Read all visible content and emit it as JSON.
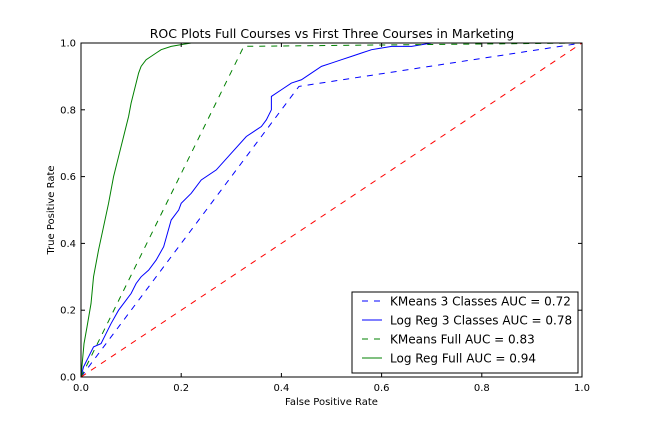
{
  "chart_data": {
    "type": "line",
    "title": "ROC Plots Full Courses vs First Three Courses in Marketing",
    "xlabel": "False Positive Rate",
    "ylabel": "True Positive Rate",
    "xlim": [
      0.0,
      1.0
    ],
    "ylim": [
      0.0,
      1.0
    ],
    "xticks": [
      "0.0",
      "0.2",
      "0.4",
      "0.6",
      "0.8",
      "1.0"
    ],
    "yticks": [
      "0.0",
      "0.2",
      "0.4",
      "0.6",
      "0.8",
      "1.0"
    ],
    "grid": false,
    "legend_position": "bottom-right",
    "series": [
      {
        "name": "KMeans 3 Classes AUC = 0.72",
        "color": "#0000ff",
        "dash": "dashed",
        "points": [
          [
            0.0,
            0.0
          ],
          [
            0.435,
            0.87
          ],
          [
            1.0,
            1.0
          ]
        ]
      },
      {
        "name": "Log Reg 3 Classes AUC = 0.78",
        "color": "#0000ff",
        "dash": "solid",
        "points": [
          [
            0.0,
            0.0
          ],
          [
            0.005,
            0.03
          ],
          [
            0.015,
            0.06
          ],
          [
            0.025,
            0.09
          ],
          [
            0.04,
            0.1
          ],
          [
            0.05,
            0.13
          ],
          [
            0.06,
            0.16
          ],
          [
            0.075,
            0.2
          ],
          [
            0.09,
            0.23
          ],
          [
            0.1,
            0.25
          ],
          [
            0.11,
            0.28
          ],
          [
            0.12,
            0.3
          ],
          [
            0.135,
            0.32
          ],
          [
            0.15,
            0.35
          ],
          [
            0.165,
            0.39
          ],
          [
            0.18,
            0.47
          ],
          [
            0.195,
            0.5
          ],
          [
            0.2,
            0.52
          ],
          [
            0.22,
            0.55
          ],
          [
            0.24,
            0.59
          ],
          [
            0.27,
            0.62
          ],
          [
            0.3,
            0.67
          ],
          [
            0.33,
            0.72
          ],
          [
            0.36,
            0.75
          ],
          [
            0.37,
            0.77
          ],
          [
            0.38,
            0.8
          ],
          [
            0.38,
            0.84
          ],
          [
            0.4,
            0.86
          ],
          [
            0.42,
            0.88
          ],
          [
            0.44,
            0.89
          ],
          [
            0.46,
            0.91
          ],
          [
            0.48,
            0.93
          ],
          [
            0.5,
            0.94
          ],
          [
            0.52,
            0.95
          ],
          [
            0.54,
            0.96
          ],
          [
            0.56,
            0.97
          ],
          [
            0.58,
            0.98
          ],
          [
            0.62,
            0.99
          ],
          [
            0.66,
            0.99
          ],
          [
            0.7,
            1.0
          ],
          [
            1.0,
            1.0
          ]
        ]
      },
      {
        "name": "KMeans Full AUC = 0.83",
        "color": "#008000",
        "dash": "dashed",
        "points": [
          [
            0.0,
            0.0
          ],
          [
            0.325,
            0.99
          ],
          [
            1.0,
            1.0
          ]
        ]
      },
      {
        "name": "Log Reg Full AUC = 0.94",
        "color": "#008000",
        "dash": "solid",
        "points": [
          [
            0.0,
            0.0
          ],
          [
            0.003,
            0.05
          ],
          [
            0.006,
            0.1
          ],
          [
            0.012,
            0.15
          ],
          [
            0.02,
            0.22
          ],
          [
            0.025,
            0.3
          ],
          [
            0.035,
            0.38
          ],
          [
            0.045,
            0.45
          ],
          [
            0.055,
            0.52
          ],
          [
            0.065,
            0.6
          ],
          [
            0.075,
            0.66
          ],
          [
            0.085,
            0.72
          ],
          [
            0.095,
            0.78
          ],
          [
            0.1,
            0.82
          ],
          [
            0.105,
            0.85
          ],
          [
            0.11,
            0.88
          ],
          [
            0.115,
            0.91
          ],
          [
            0.12,
            0.93
          ],
          [
            0.13,
            0.95
          ],
          [
            0.14,
            0.96
          ],
          [
            0.15,
            0.97
          ],
          [
            0.16,
            0.98
          ],
          [
            0.18,
            0.99
          ],
          [
            0.2,
            0.995
          ],
          [
            0.22,
            1.0
          ],
          [
            1.0,
            1.0
          ]
        ]
      },
      {
        "name": "",
        "color": "#ff0000",
        "dash": "dashed",
        "points": [
          [
            0.0,
            0.0
          ],
          [
            1.0,
            1.0
          ]
        ]
      }
    ]
  }
}
